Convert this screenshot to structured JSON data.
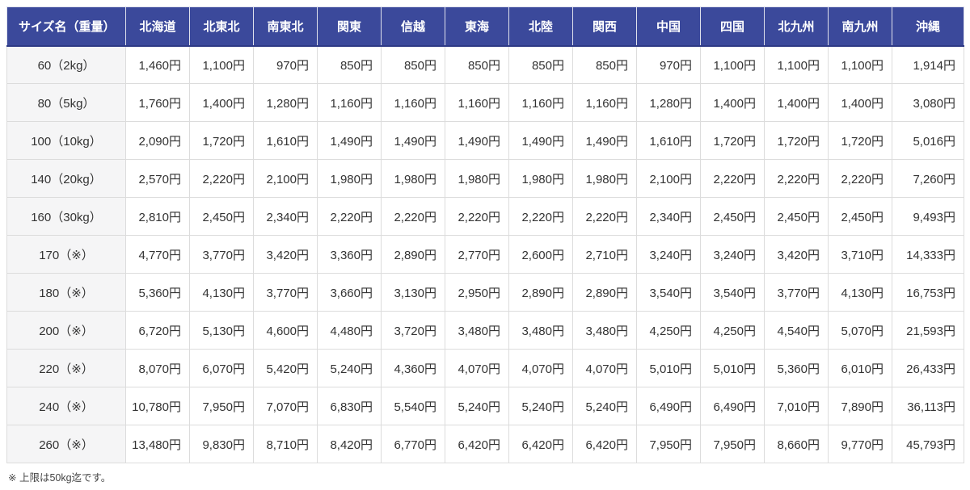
{
  "table": {
    "header": [
      "サイズ名（重量）",
      "北海道",
      "北東北",
      "南東北",
      "関東",
      "信越",
      "東海",
      "北陸",
      "関西",
      "中国",
      "四国",
      "北九州",
      "南九州",
      "沖縄"
    ],
    "rows": [
      {
        "label": "60（2kg）",
        "values": [
          "1,460円",
          "1,100円",
          "970円",
          "850円",
          "850円",
          "850円",
          "850円",
          "850円",
          "970円",
          "1,100円",
          "1,100円",
          "1,100円",
          "1,914円"
        ]
      },
      {
        "label": "80（5kg）",
        "values": [
          "1,760円",
          "1,400円",
          "1,280円",
          "1,160円",
          "1,160円",
          "1,160円",
          "1,160円",
          "1,160円",
          "1,280円",
          "1,400円",
          "1,400円",
          "1,400円",
          "3,080円"
        ]
      },
      {
        "label": "100（10kg）",
        "values": [
          "2,090円",
          "1,720円",
          "1,610円",
          "1,490円",
          "1,490円",
          "1,490円",
          "1,490円",
          "1,490円",
          "1,610円",
          "1,720円",
          "1,720円",
          "1,720円",
          "5,016円"
        ]
      },
      {
        "label": "140（20kg）",
        "values": [
          "2,570円",
          "2,220円",
          "2,100円",
          "1,980円",
          "1,980円",
          "1,980円",
          "1,980円",
          "1,980円",
          "2,100円",
          "2,220円",
          "2,220円",
          "2,220円",
          "7,260円"
        ]
      },
      {
        "label": "160（30kg）",
        "values": [
          "2,810円",
          "2,450円",
          "2,340円",
          "2,220円",
          "2,220円",
          "2,220円",
          "2,220円",
          "2,220円",
          "2,340円",
          "2,450円",
          "2,450円",
          "2,450円",
          "9,493円"
        ]
      },
      {
        "label": "170（※）",
        "values": [
          "4,770円",
          "3,770円",
          "3,420円",
          "3,360円",
          "2,890円",
          "2,770円",
          "2,600円",
          "2,710円",
          "3,240円",
          "3,240円",
          "3,420円",
          "3,710円",
          "14,333円"
        ]
      },
      {
        "label": "180（※）",
        "values": [
          "5,360円",
          "4,130円",
          "3,770円",
          "3,660円",
          "3,130円",
          "2,950円",
          "2,890円",
          "2,890円",
          "3,540円",
          "3,540円",
          "3,770円",
          "4,130円",
          "16,753円"
        ]
      },
      {
        "label": "200（※）",
        "values": [
          "6,720円",
          "5,130円",
          "4,600円",
          "4,480円",
          "3,720円",
          "3,480円",
          "3,480円",
          "3,480円",
          "4,250円",
          "4,250円",
          "4,540円",
          "5,070円",
          "21,593円"
        ]
      },
      {
        "label": "220（※）",
        "values": [
          "8,070円",
          "6,070円",
          "5,420円",
          "5,240円",
          "4,360円",
          "4,070円",
          "4,070円",
          "4,070円",
          "5,010円",
          "5,010円",
          "5,360円",
          "6,010円",
          "26,433円"
        ]
      },
      {
        "label": "240（※）",
        "values": [
          "10,780円",
          "7,950円",
          "7,070円",
          "6,830円",
          "5,540円",
          "5,240円",
          "5,240円",
          "5,240円",
          "6,490円",
          "6,490円",
          "7,010円",
          "7,890円",
          "36,113円"
        ]
      },
      {
        "label": "260（※）",
        "values": [
          "13,480円",
          "9,830円",
          "8,710円",
          "8,420円",
          "6,770円",
          "6,420円",
          "6,420円",
          "6,420円",
          "7,950円",
          "7,950円",
          "8,660円",
          "9,770円",
          "45,793円"
        ]
      }
    ]
  },
  "footnote": "※ 上限は50kg迄です。",
  "colors": {
    "header_bg": "#3B499B",
    "header_text": "#ffffff",
    "label_bg": "#f5f5f6",
    "cell_bg": "#ffffff",
    "border": "#dcdcdc",
    "cell_text": "#333333"
  },
  "layout": {
    "size_col_width": 147,
    "region_col_width": 79,
    "okinawa_col_width": 89
  }
}
